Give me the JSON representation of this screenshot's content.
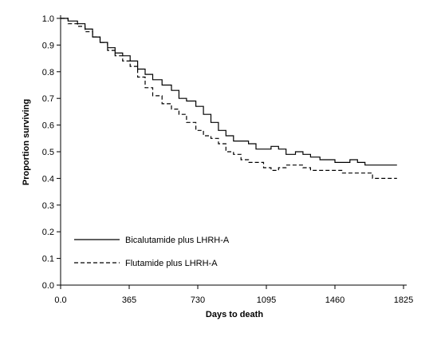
{
  "chart_data": {
    "type": "line",
    "title": "",
    "xlabel": "Days to death",
    "ylabel": "Proportion surviving",
    "xlim": [
      0,
      1825
    ],
    "ylim": [
      0,
      1.0
    ],
    "x_ticks": [
      0,
      365,
      730,
      1095,
      1460,
      1825
    ],
    "x_tick_labels": [
      "0.0",
      "365",
      "730",
      "1095",
      "1460",
      "1825"
    ],
    "y_ticks": [
      0,
      0.1,
      0.2,
      0.3,
      0.4,
      0.5,
      0.6,
      0.7,
      0.8,
      0.9,
      1.0
    ],
    "y_tick_labels": [
      "0.0",
      "0.1",
      "0.2",
      "0.3",
      "0.4",
      "0.5",
      "0.6",
      "0.7",
      "0.8",
      "0.9",
      "1.0"
    ],
    "grid": false,
    "legend_position": "bottom-left",
    "series": [
      {
        "name": "Bicalutamide plus LHRH-A",
        "line_style": "solid",
        "color": "#000000",
        "x": [
          0,
          40,
          90,
          130,
          170,
          210,
          250,
          290,
          330,
          370,
          410,
          450,
          490,
          540,
          590,
          630,
          670,
          720,
          760,
          800,
          840,
          880,
          920,
          960,
          1000,
          1040,
          1080,
          1120,
          1160,
          1200,
          1250,
          1290,
          1330,
          1380,
          1420,
          1460,
          1500,
          1540,
          1580,
          1620,
          1660,
          1700,
          1740,
          1790
        ],
        "y": [
          1.0,
          0.99,
          0.98,
          0.96,
          0.93,
          0.91,
          0.89,
          0.87,
          0.86,
          0.84,
          0.81,
          0.79,
          0.77,
          0.75,
          0.73,
          0.7,
          0.69,
          0.67,
          0.64,
          0.61,
          0.58,
          0.56,
          0.54,
          0.54,
          0.53,
          0.51,
          0.51,
          0.52,
          0.51,
          0.49,
          0.5,
          0.49,
          0.48,
          0.47,
          0.47,
          0.46,
          0.46,
          0.47,
          0.46,
          0.45,
          0.45,
          0.45,
          0.45,
          0.45
        ]
      },
      {
        "name": "Flutamide plus LHRH-A",
        "line_style": "dashed",
        "color": "#000000",
        "x": [
          0,
          40,
          90,
          130,
          170,
          210,
          250,
          290,
          330,
          370,
          410,
          450,
          490,
          540,
          590,
          630,
          670,
          720,
          760,
          800,
          840,
          880,
          920,
          960,
          1000,
          1040,
          1080,
          1120,
          1160,
          1200,
          1250,
          1290,
          1330,
          1380,
          1420,
          1460,
          1500,
          1540,
          1580,
          1620,
          1660,
          1700,
          1740,
          1790
        ],
        "y": [
          1.0,
          0.98,
          0.97,
          0.95,
          0.93,
          0.91,
          0.88,
          0.86,
          0.84,
          0.82,
          0.78,
          0.74,
          0.71,
          0.68,
          0.66,
          0.64,
          0.61,
          0.58,
          0.56,
          0.55,
          0.53,
          0.5,
          0.49,
          0.47,
          0.46,
          0.46,
          0.44,
          0.43,
          0.44,
          0.45,
          0.45,
          0.44,
          0.43,
          0.43,
          0.43,
          0.43,
          0.42,
          0.42,
          0.42,
          0.42,
          0.4,
          0.4,
          0.4,
          0.4
        ]
      }
    ]
  }
}
